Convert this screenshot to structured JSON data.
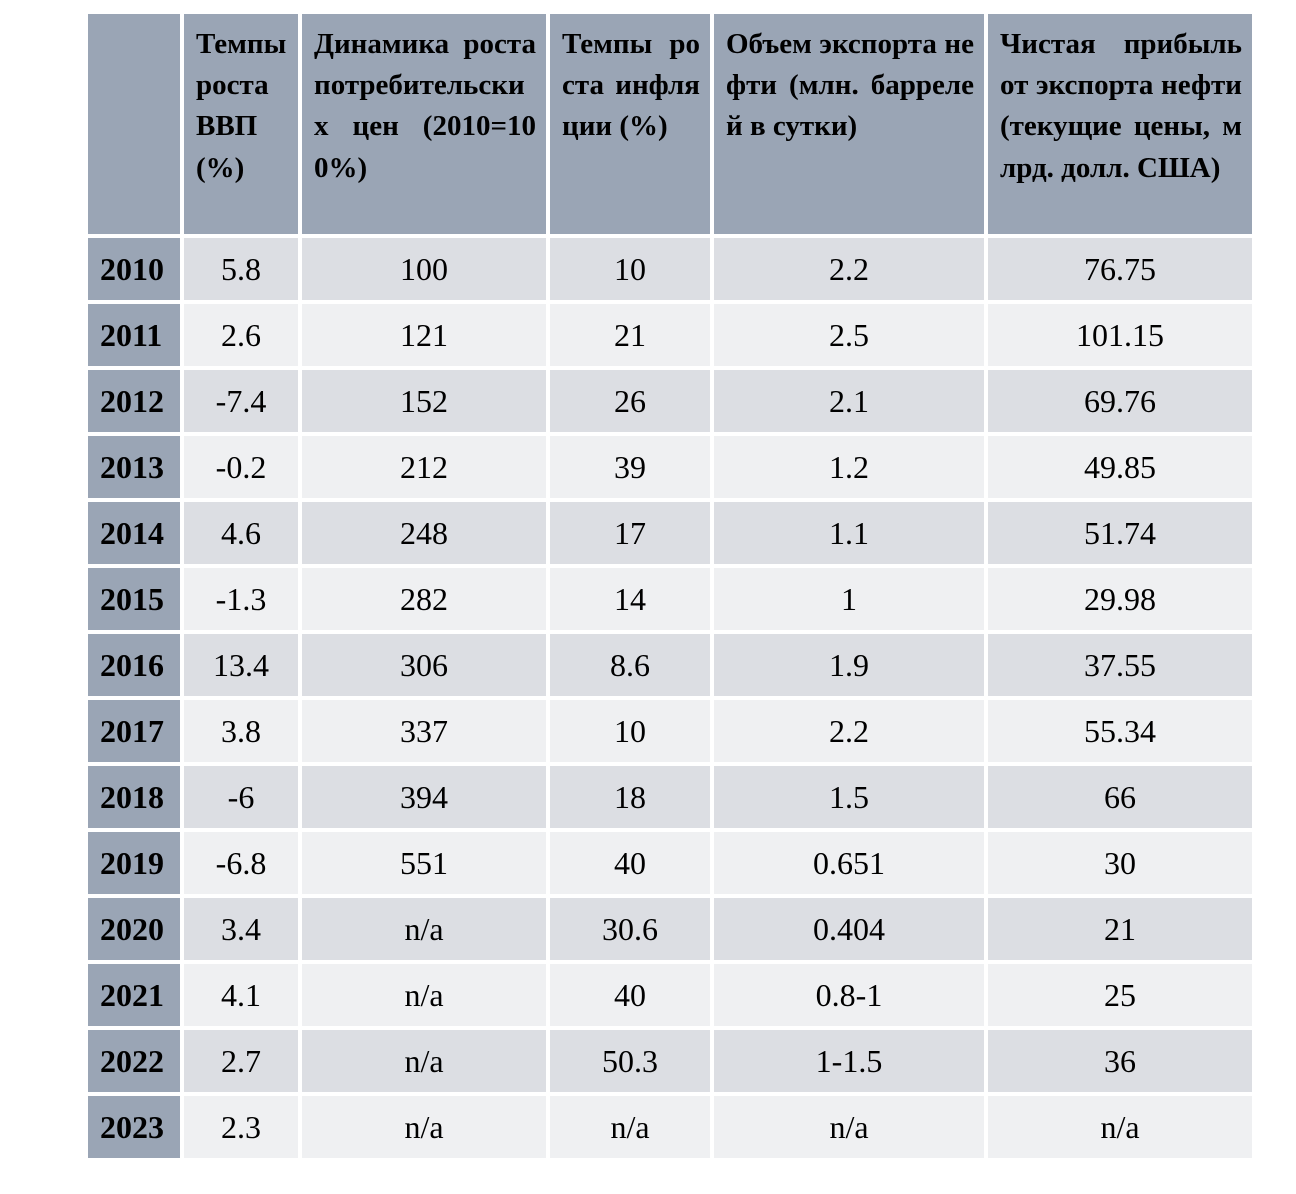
{
  "colors": {
    "header_background": "#9aa5b5",
    "year_column_background": "#9aa5b5",
    "row_dark": "#dcdee3",
    "row_light": "#eff0f2",
    "grid_gap": "#ffffff",
    "text": "#000000"
  },
  "chart_data": {
    "type": "table",
    "title": "",
    "columns": [
      "",
      "Темпы роста ВВП (%)",
      "Динамика роста потребительских цен (2010=100%)",
      "Темпы роста инфляции (%)",
      "Объем экспорта нефти (млн. баррелей в сутки)",
      "Чистая прибыль от экспорта нефти (текущие цены, млрд. долл. США)"
    ],
    "rows": [
      [
        "2010",
        "5.8",
        "100",
        "10",
        "2.2",
        "76.75"
      ],
      [
        "2011",
        "2.6",
        "121",
        "21",
        "2.5",
        "101.15"
      ],
      [
        "2012",
        "-7.4",
        "152",
        "26",
        "2.1",
        "69.76"
      ],
      [
        "2013",
        "-0.2",
        "212",
        "39",
        "1.2",
        "49.85"
      ],
      [
        "2014",
        "4.6",
        "248",
        "17",
        "1.1",
        "51.74"
      ],
      [
        "2015",
        "-1.3",
        "282",
        "14",
        "1",
        "29.98"
      ],
      [
        "2016",
        "13.4",
        "306",
        "8.6",
        "1.9",
        "37.55"
      ],
      [
        "2017",
        "3.8",
        "337",
        "10",
        "2.2",
        "55.34"
      ],
      [
        "2018",
        "-6",
        "394",
        "18",
        "1.5",
        "66"
      ],
      [
        "2019",
        "-6.8",
        "551",
        "40",
        "0.651",
        "30"
      ],
      [
        "2020",
        "3.4",
        "n/a",
        "30.6",
        "0.404",
        "21"
      ],
      [
        "2021",
        "4.1",
        "n/a",
        "40",
        "0.8-1",
        "25"
      ],
      [
        "2022",
        "2.7",
        "n/a",
        "50.3",
        "1-1.5",
        "36"
      ],
      [
        "2023",
        "2.3",
        "n/a",
        "n/a",
        "n/a",
        "n/a"
      ]
    ]
  }
}
